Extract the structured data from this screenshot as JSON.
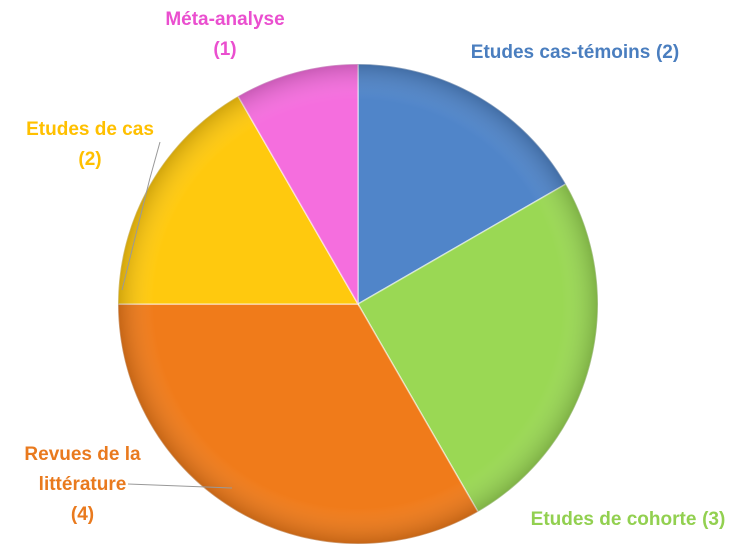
{
  "chart_data": {
    "type": "pie",
    "categories": [
      "Etudes cas-témoins",
      "Etudes de cohorte",
      "Revues de la littérature",
      "Etudes de cas",
      "Méta-analyse"
    ],
    "values": [
      2,
      3,
      4,
      2,
      1
    ],
    "value_labels": [
      "(2)",
      "(3)",
      "(4)",
      "(2)",
      "(1)"
    ],
    "colors": [
      "#5085c9",
      "#9ad854",
      "#f07b1a",
      "#ffc90e",
      "#f56ede"
    ],
    "label_colors": [
      "#4a7ebf",
      "#92d050",
      "#e97a1e",
      "#ffc000",
      "#ea4fcf"
    ]
  }
}
